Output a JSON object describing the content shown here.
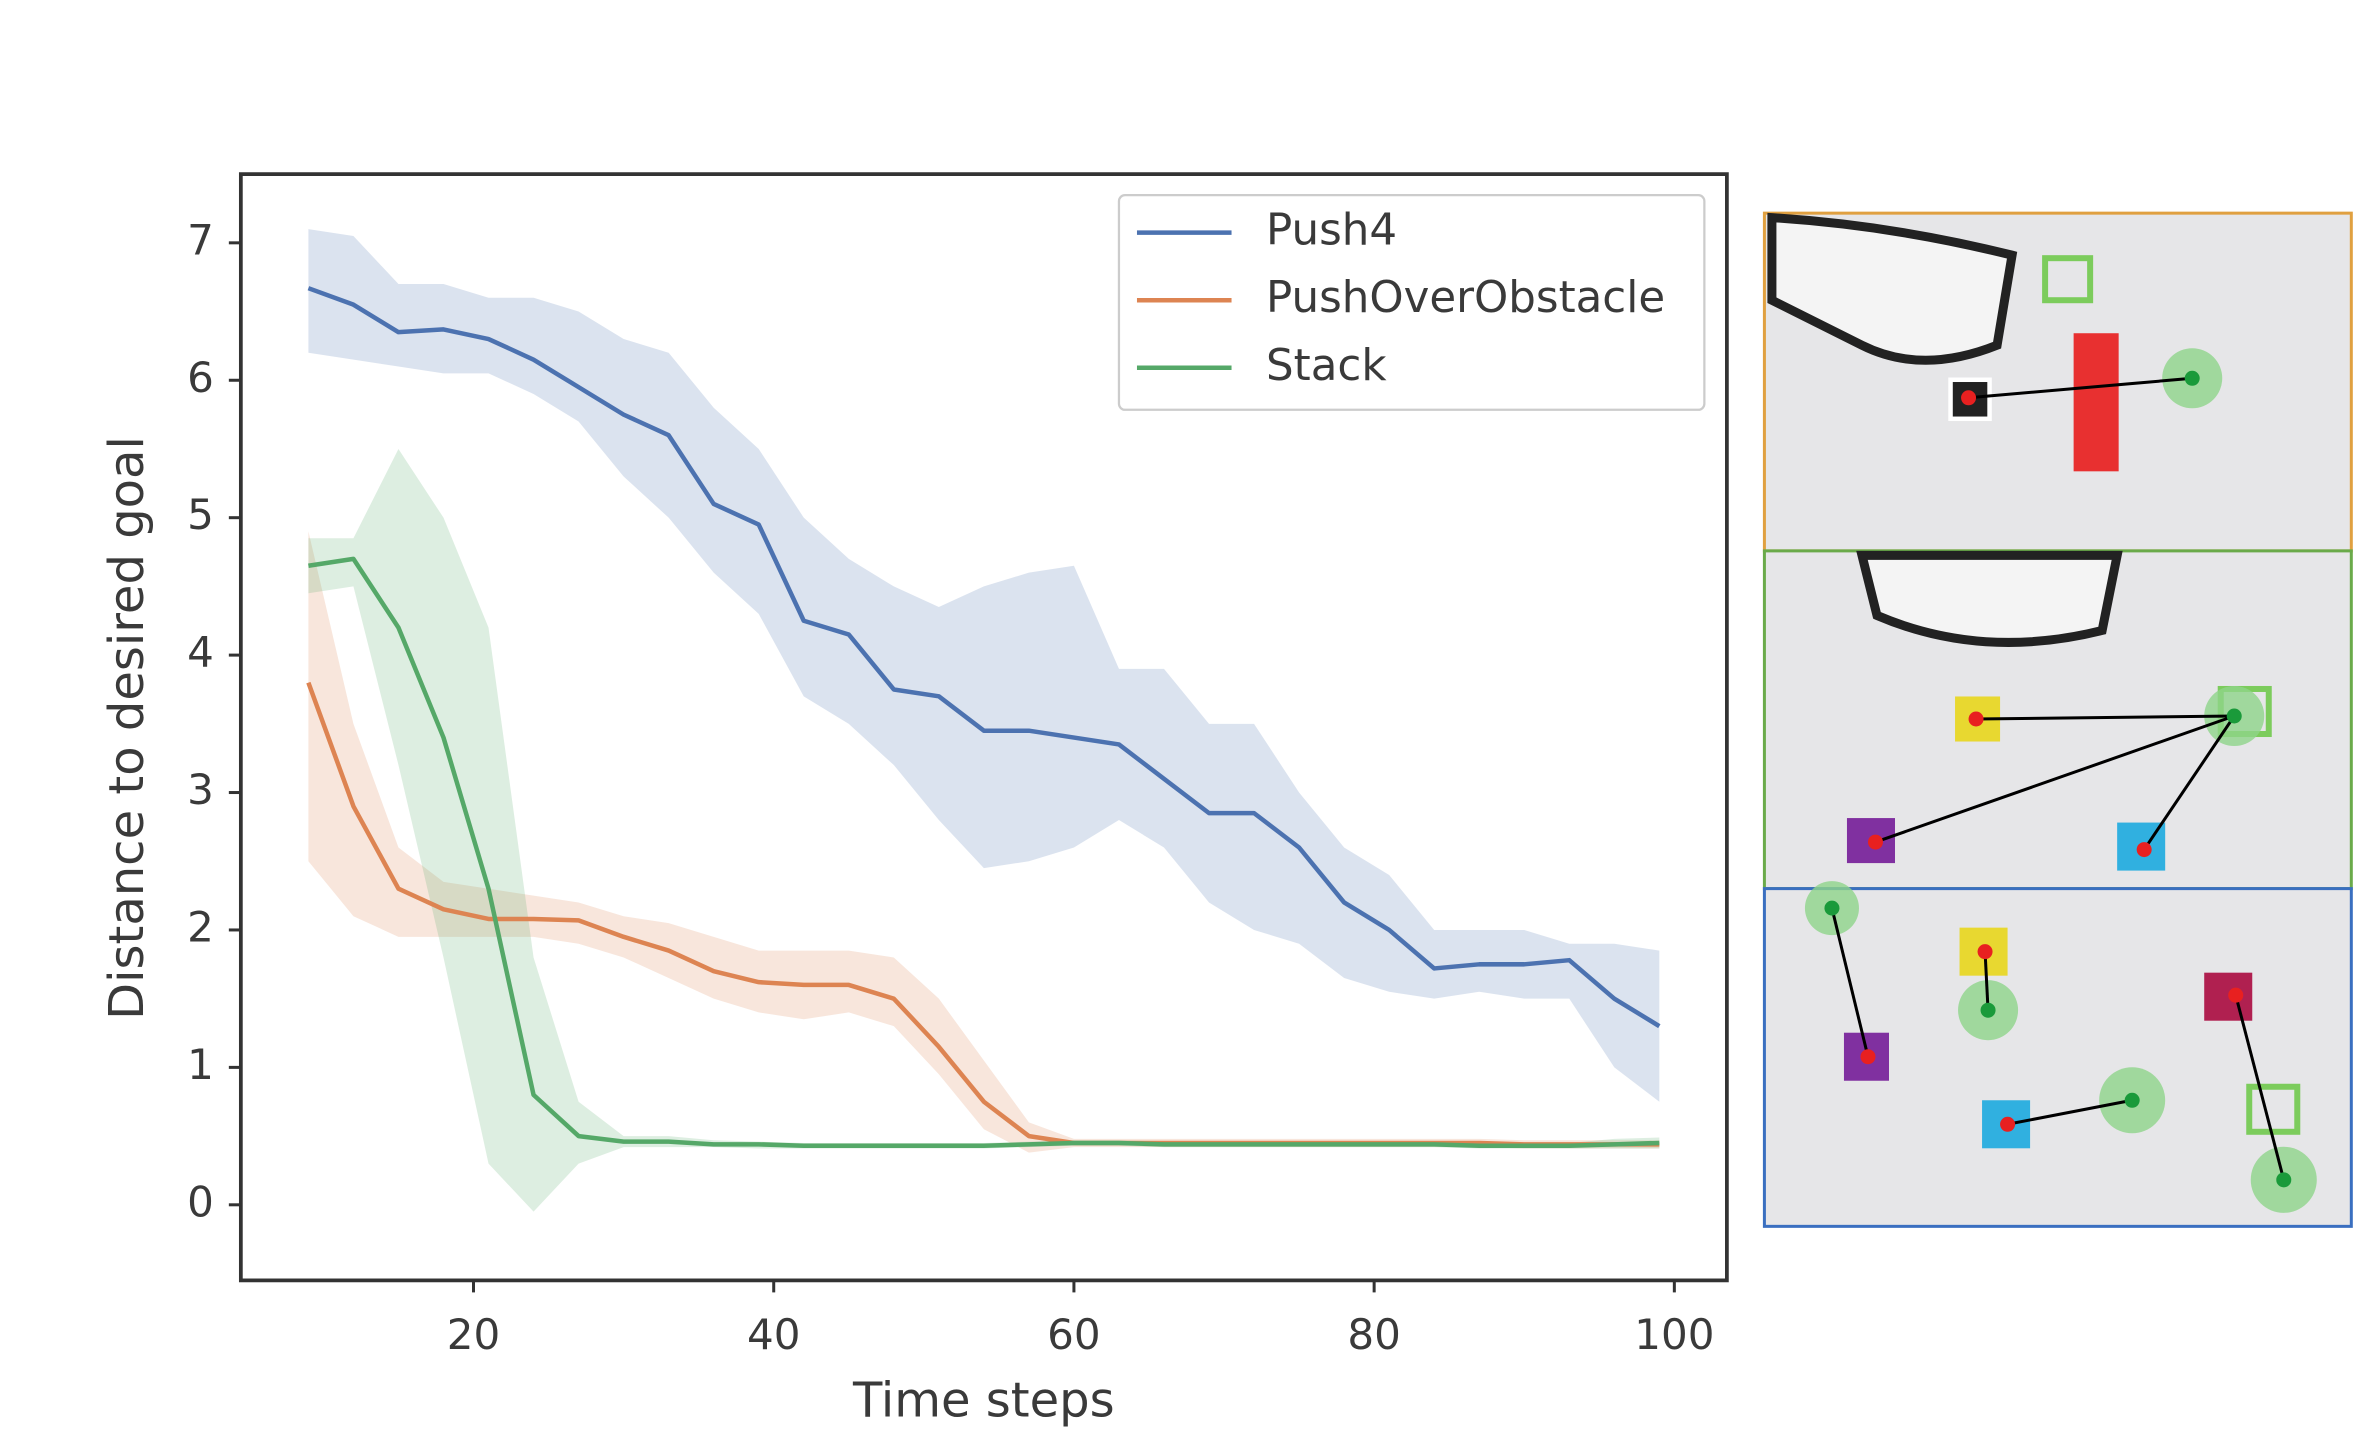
{
  "chart_data": {
    "type": "line",
    "xlabel": "Time steps",
    "ylabel": "Distance to desired goal",
    "x": [
      9,
      12,
      15,
      18,
      21,
      24,
      27,
      30,
      33,
      36,
      39,
      42,
      45,
      48,
      51,
      54,
      57,
      60,
      63,
      66,
      69,
      72,
      75,
      78,
      81,
      84,
      87,
      90,
      93,
      96,
      99
    ],
    "series": [
      {
        "name": "Push4",
        "color": "#4c72b0",
        "values": [
          6.67,
          6.55,
          6.35,
          6.37,
          6.3,
          6.15,
          5.95,
          5.75,
          5.6,
          5.1,
          4.95,
          4.25,
          4.15,
          3.75,
          3.7,
          3.45,
          3.45,
          3.4,
          3.35,
          3.1,
          2.85,
          2.85,
          2.6,
          2.2,
          2.0,
          1.72,
          1.75,
          1.75,
          1.78,
          1.5,
          1.3
        ],
        "lower": [
          6.2,
          6.15,
          6.1,
          6.05,
          6.05,
          5.9,
          5.7,
          5.3,
          5.0,
          4.6,
          4.3,
          3.7,
          3.5,
          3.2,
          2.8,
          2.45,
          2.5,
          2.6,
          2.8,
          2.6,
          2.2,
          2.0,
          1.9,
          1.65,
          1.55,
          1.5,
          1.55,
          1.5,
          1.5,
          1.0,
          0.75
        ],
        "upper": [
          7.1,
          7.05,
          6.7,
          6.7,
          6.6,
          6.6,
          6.5,
          6.3,
          6.2,
          5.8,
          5.5,
          5.0,
          4.7,
          4.5,
          4.35,
          4.5,
          4.6,
          4.65,
          3.9,
          3.9,
          3.5,
          3.5,
          3.0,
          2.6,
          2.4,
          2.0,
          2.0,
          2.0,
          1.9,
          1.9,
          1.85
        ]
      },
      {
        "name": "PushOverObstacle",
        "color": "#dd8452",
        "values": [
          3.8,
          2.9,
          2.3,
          2.15,
          2.08,
          2.08,
          2.07,
          1.95,
          1.85,
          1.7,
          1.62,
          1.6,
          1.6,
          1.5,
          1.15,
          0.75,
          0.5,
          0.45,
          0.45,
          0.45,
          0.45,
          0.45,
          0.45,
          0.45,
          0.45,
          0.45,
          0.45,
          0.44,
          0.44,
          0.44,
          0.44
        ],
        "lower": [
          2.5,
          2.1,
          1.95,
          1.95,
          1.95,
          1.95,
          1.9,
          1.8,
          1.65,
          1.5,
          1.4,
          1.35,
          1.4,
          1.3,
          0.95,
          0.55,
          0.38,
          0.42,
          0.42,
          0.42,
          0.42,
          0.42,
          0.42,
          0.42,
          0.42,
          0.42,
          0.42,
          0.41,
          0.41,
          0.41,
          0.41
        ],
        "upper": [
          4.9,
          3.5,
          2.6,
          2.35,
          2.3,
          2.25,
          2.2,
          2.1,
          2.05,
          1.95,
          1.85,
          1.85,
          1.85,
          1.8,
          1.5,
          1.05,
          0.6,
          0.48,
          0.48,
          0.48,
          0.48,
          0.48,
          0.48,
          0.48,
          0.48,
          0.48,
          0.48,
          0.47,
          0.47,
          0.47,
          0.47
        ]
      },
      {
        "name": "Stack",
        "color": "#55a868",
        "values": [
          4.65,
          4.7,
          4.2,
          3.4,
          2.3,
          0.8,
          0.5,
          0.46,
          0.46,
          0.44,
          0.44,
          0.43,
          0.43,
          0.43,
          0.43,
          0.43,
          0.44,
          0.45,
          0.45,
          0.44,
          0.44,
          0.44,
          0.44,
          0.44,
          0.44,
          0.44,
          0.43,
          0.43,
          0.43,
          0.44,
          0.45
        ],
        "lower": [
          4.45,
          4.5,
          3.2,
          1.8,
          0.3,
          -0.05,
          0.3,
          0.42,
          0.42,
          0.42,
          0.41,
          0.41,
          0.41,
          0.41,
          0.41,
          0.41,
          0.42,
          0.43,
          0.43,
          0.42,
          0.42,
          0.42,
          0.42,
          0.42,
          0.42,
          0.42,
          0.41,
          0.41,
          0.41,
          0.41,
          0.41
        ],
        "upper": [
          4.85,
          4.85,
          5.5,
          5.0,
          4.2,
          1.8,
          0.75,
          0.5,
          0.5,
          0.47,
          0.46,
          0.45,
          0.45,
          0.45,
          0.45,
          0.45,
          0.46,
          0.47,
          0.47,
          0.46,
          0.46,
          0.46,
          0.46,
          0.46,
          0.46,
          0.46,
          0.45,
          0.45,
          0.45,
          0.48,
          0.49
        ]
      }
    ],
    "xlim": [
      4.5,
      103.5
    ],
    "ylim": [
      -0.55,
      7.5
    ],
    "xticks": [
      20,
      40,
      60,
      80,
      100
    ],
    "yticks": [
      0,
      1,
      2,
      3,
      4,
      5,
      6,
      7
    ],
    "grid": false,
    "legend": "upper right"
  }
}
